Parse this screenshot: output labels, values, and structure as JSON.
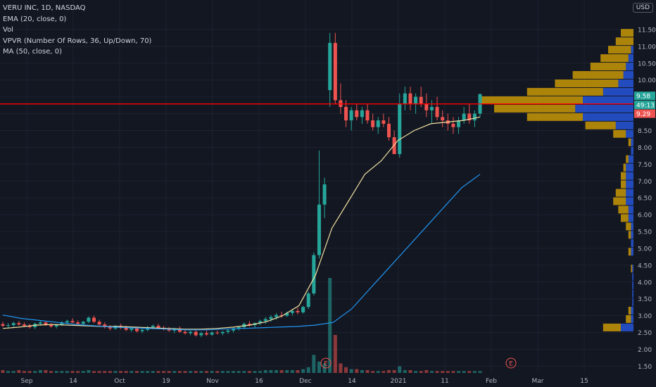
{
  "legend": {
    "title": "VERU INC, 1D, NASDAQ",
    "ema": "EMA (20, close, 0)",
    "vol": "Vol",
    "vpvr": "VPVR (Number Of Rows, 36, Up/Down, 70)",
    "ma": "MA (50, close, 0)"
  },
  "currency": "USD",
  "price_axis": {
    "ticks": [
      "11.50",
      "11.00",
      "10.50",
      "10.00",
      "9.50",
      "9.00",
      "8.50",
      "8.00",
      "7.50",
      "7.00",
      "6.50",
      "6.00",
      "5.50",
      "5.00",
      "4.50",
      "4.00",
      "3.50",
      "3.00",
      "2.50",
      "2.00",
      "1.50"
    ],
    "label_last": "9.58",
    "label_countdown": "49:13",
    "label_red": "9.29"
  },
  "time_axis": [
    "Sep",
    "14",
    "Oct",
    "19",
    "Nov",
    "16",
    "Dec",
    "14",
    "2021",
    "11",
    "Feb",
    "Mar",
    "15"
  ],
  "earnings_markers": [
    "E",
    "E"
  ],
  "colors": {
    "background": "#131722",
    "up": "#26a69a",
    "down": "#ef5350",
    "ema": "#f0e0a0",
    "ma": "#2196f3",
    "hline": "#ff0000",
    "vpvr_up": "#2962ff",
    "vpvr_down": "#f0b400"
  },
  "chart_data": {
    "type": "candlestick",
    "series": [
      {
        "name": "price",
        "ohlc": [
          [
            2.75,
            2.82,
            2.66,
            2.7
          ],
          [
            2.7,
            2.78,
            2.62,
            2.72
          ],
          [
            2.72,
            2.82,
            2.66,
            2.78
          ],
          [
            2.78,
            2.84,
            2.7,
            2.74
          ],
          [
            2.74,
            2.8,
            2.66,
            2.7
          ],
          [
            2.7,
            2.76,
            2.62,
            2.66
          ],
          [
            2.66,
            2.8,
            2.6,
            2.76
          ],
          [
            2.76,
            2.86,
            2.7,
            2.8
          ],
          [
            2.8,
            2.84,
            2.7,
            2.72
          ],
          [
            2.72,
            2.78,
            2.64,
            2.68
          ],
          [
            2.68,
            2.76,
            2.62,
            2.74
          ],
          [
            2.74,
            2.84,
            2.7,
            2.8
          ],
          [
            2.8,
            2.88,
            2.74,
            2.84
          ],
          [
            2.84,
            2.92,
            2.78,
            2.8
          ],
          [
            2.8,
            2.86,
            2.72,
            2.76
          ],
          [
            2.76,
            2.84,
            2.7,
            2.82
          ],
          [
            2.82,
            2.98,
            2.78,
            2.94
          ],
          [
            2.94,
            3.0,
            2.78,
            2.82
          ],
          [
            2.82,
            2.88,
            2.7,
            2.74
          ],
          [
            2.74,
            2.8,
            2.62,
            2.66
          ],
          [
            2.66,
            2.72,
            2.56,
            2.62
          ],
          [
            2.62,
            2.72,
            2.58,
            2.7
          ],
          [
            2.7,
            2.76,
            2.6,
            2.64
          ],
          [
            2.64,
            2.7,
            2.54,
            2.58
          ],
          [
            2.58,
            2.66,
            2.52,
            2.62
          ],
          [
            2.62,
            2.66,
            2.5,
            2.54
          ],
          [
            2.54,
            2.62,
            2.48,
            2.58
          ],
          [
            2.58,
            2.7,
            2.54,
            2.66
          ],
          [
            2.66,
            2.74,
            2.6,
            2.7
          ],
          [
            2.7,
            2.76,
            2.62,
            2.64
          ],
          [
            2.64,
            2.7,
            2.56,
            2.6
          ],
          [
            2.6,
            2.66,
            2.52,
            2.56
          ],
          [
            2.56,
            2.64,
            2.48,
            2.62
          ],
          [
            2.62,
            2.68,
            2.5,
            2.52
          ],
          [
            2.52,
            2.6,
            2.44,
            2.48
          ],
          [
            2.48,
            2.56,
            2.42,
            2.52
          ],
          [
            2.52,
            2.58,
            2.38,
            2.42
          ],
          [
            2.42,
            2.52,
            2.36,
            2.48
          ],
          [
            2.48,
            2.56,
            2.4,
            2.44
          ],
          [
            2.44,
            2.54,
            2.4,
            2.5
          ],
          [
            2.5,
            2.56,
            2.44,
            2.48
          ],
          [
            2.48,
            2.54,
            2.42,
            2.52
          ],
          [
            2.52,
            2.6,
            2.46,
            2.56
          ],
          [
            2.56,
            2.66,
            2.5,
            2.62
          ],
          [
            2.62,
            2.7,
            2.56,
            2.66
          ],
          [
            2.66,
            2.8,
            2.6,
            2.76
          ],
          [
            2.76,
            2.84,
            2.68,
            2.72
          ],
          [
            2.72,
            2.8,
            2.64,
            2.78
          ],
          [
            2.78,
            2.88,
            2.72,
            2.84
          ],
          [
            2.84,
            2.96,
            2.76,
            2.9
          ],
          [
            2.9,
            3.02,
            2.82,
            2.96
          ],
          [
            2.96,
            3.08,
            2.88,
            3.02
          ],
          [
            3.02,
            3.12,
            2.94,
            3.0
          ],
          [
            3.0,
            3.12,
            2.96,
            3.08
          ],
          [
            3.08,
            3.2,
            3.0,
            3.14
          ],
          [
            3.14,
            3.24,
            3.04,
            3.1
          ],
          [
            3.1,
            3.3,
            3.06,
            3.26
          ],
          [
            3.26,
            3.72,
            3.2,
            3.66
          ],
          [
            3.66,
            4.88,
            3.6,
            4.8
          ],
          [
            4.8,
            7.9,
            4.7,
            6.3
          ],
          [
            6.3,
            7.1,
            5.9,
            6.9
          ],
          [
            9.7,
            11.4,
            9.2,
            11.1
          ],
          [
            11.1,
            11.4,
            9.3,
            9.4
          ],
          [
            9.4,
            9.9,
            9.0,
            9.2
          ],
          [
            9.2,
            9.4,
            8.6,
            8.8
          ],
          [
            8.8,
            9.2,
            8.5,
            9.1
          ],
          [
            9.1,
            9.3,
            8.8,
            8.9
          ],
          [
            8.9,
            9.2,
            8.7,
            9.1
          ],
          [
            9.1,
            9.3,
            8.7,
            8.8
          ],
          [
            8.8,
            9.0,
            8.5,
            8.6
          ],
          [
            8.6,
            8.9,
            8.4,
            8.8
          ],
          [
            8.8,
            9.0,
            8.6,
            8.7
          ],
          [
            8.7,
            8.9,
            8.2,
            8.3
          ],
          [
            8.3,
            8.5,
            7.8,
            7.8
          ],
          [
            7.8,
            9.6,
            7.7,
            9.3
          ],
          [
            9.3,
            9.8,
            9.1,
            9.6
          ],
          [
            9.6,
            9.8,
            9.1,
            9.3
          ],
          [
            9.3,
            9.6,
            9.0,
            9.5
          ],
          [
            9.5,
            9.8,
            9.2,
            9.3
          ],
          [
            9.3,
            9.6,
            8.9,
            9.1
          ],
          [
            9.1,
            9.4,
            8.7,
            9.2
          ],
          [
            9.2,
            9.5,
            8.8,
            8.9
          ],
          [
            8.9,
            9.1,
            8.6,
            8.8
          ],
          [
            8.8,
            9.0,
            8.5,
            8.7
          ],
          [
            8.7,
            8.9,
            8.4,
            8.6
          ],
          [
            8.6,
            8.9,
            8.4,
            8.8
          ],
          [
            8.8,
            9.2,
            8.7,
            9.0
          ],
          [
            9.0,
            9.3,
            8.7,
            8.8
          ],
          [
            8.8,
            9.1,
            8.6,
            9.0
          ],
          [
            9.0,
            9.6,
            8.9,
            9.58
          ]
        ]
      },
      {
        "name": "EMA (20, close, 0)",
        "y": [
          2.62,
          2.66,
          2.72,
          2.74,
          2.72,
          2.7,
          2.68,
          2.68,
          2.66,
          2.64,
          2.62,
          2.6,
          2.6,
          2.62,
          2.66,
          2.72,
          2.82,
          3.0,
          3.3,
          4.2,
          5.6,
          6.4,
          7.2,
          7.6,
          8.2,
          8.5,
          8.7,
          8.75,
          8.8,
          8.9
        ]
      },
      {
        "name": "MA (50, close, 0)",
        "y": [
          3.02,
          2.92,
          2.86,
          2.8,
          2.74,
          2.7,
          2.66,
          2.64,
          2.62,
          2.6,
          2.58,
          2.58,
          2.6,
          2.62,
          2.64,
          2.66,
          2.68,
          2.72,
          2.8,
          3.2,
          3.8,
          4.4,
          5.0,
          5.6,
          6.2,
          6.8,
          7.2
        ]
      }
    ],
    "volume": [
      0.03,
      0.02,
      0.02,
      0.03,
      0.02,
      0.02,
      0.02,
      0.03,
      0.03,
      0.02,
      0.02,
      0.02,
      0.02,
      0.02,
      0.02,
      0.02,
      0.03,
      0.02,
      0.02,
      0.02,
      0.02,
      0.02,
      0.02,
      0.02,
      0.02,
      0.02,
      0.02,
      0.02,
      0.02,
      0.02,
      0.02,
      0.02,
      0.02,
      0.02,
      0.02,
      0.02,
      0.02,
      0.02,
      0.02,
      0.02,
      0.02,
      0.02,
      0.02,
      0.02,
      0.02,
      0.02,
      0.02,
      0.02,
      0.02,
      0.03,
      0.03,
      0.03,
      0.03,
      0.03,
      0.03,
      0.03,
      0.04,
      0.06,
      0.19,
      0.12,
      0.1,
      1.0,
      0.4,
      0.1,
      0.06,
      0.04,
      0.04,
      0.03,
      0.03,
      0.02,
      0.02,
      0.02,
      0.03,
      0.03,
      0.07,
      0.03,
      0.03,
      0.02,
      0.02,
      0.03,
      0.02,
      0.02,
      0.02,
      0.02,
      0.02,
      0.02,
      0.02,
      0.02,
      0.02,
      0.02
    ],
    "vpvr": [
      {
        "price": 11.4,
        "up": 0.0,
        "down": 0.1
      },
      {
        "price": 11.15,
        "up": 0.0,
        "down": 0.14
      },
      {
        "price": 10.9,
        "up": 0.02,
        "down": 0.18
      },
      {
        "price": 10.65,
        "up": 0.04,
        "down": 0.22
      },
      {
        "price": 10.4,
        "up": 0.06,
        "down": 0.28
      },
      {
        "price": 10.15,
        "up": 0.08,
        "down": 0.4
      },
      {
        "price": 9.9,
        "up": 0.12,
        "down": 0.5
      },
      {
        "price": 9.65,
        "up": 0.24,
        "down": 0.6
      },
      {
        "price": 9.4,
        "up": 0.4,
        "down": 0.82
      },
      {
        "price": 9.15,
        "up": 0.46,
        "down": 0.64
      },
      {
        "price": 8.9,
        "up": 0.4,
        "down": 0.44
      },
      {
        "price": 8.65,
        "up": 0.14,
        "down": 0.24
      },
      {
        "price": 8.4,
        "up": 0.06,
        "down": 0.1
      },
      {
        "price": 8.15,
        "up": 0.02,
        "down": 0.02
      },
      {
        "price": 7.9,
        "up": 0.02,
        "down": 0.0
      },
      {
        "price": 7.65,
        "up": 0.04,
        "down": 0.02
      },
      {
        "price": 7.4,
        "up": 0.06,
        "down": 0.02
      },
      {
        "price": 7.15,
        "up": 0.06,
        "down": 0.04
      },
      {
        "price": 6.9,
        "up": 0.06,
        "down": 0.04
      },
      {
        "price": 6.65,
        "up": 0.06,
        "down": 0.08
      },
      {
        "price": 6.4,
        "up": 0.06,
        "down": 0.1
      },
      {
        "price": 6.15,
        "up": 0.04,
        "down": 0.08
      },
      {
        "price": 5.9,
        "up": 0.04,
        "down": 0.06
      },
      {
        "price": 5.65,
        "up": 0.02,
        "down": 0.04
      },
      {
        "price": 5.4,
        "up": 0.02,
        "down": 0.02
      },
      {
        "price": 5.15,
        "up": 0.02,
        "down": 0.0
      },
      {
        "price": 4.9,
        "up": 0.02,
        "down": 0.02
      },
      {
        "price": 4.65,
        "up": 0.0,
        "down": 0.0
      },
      {
        "price": 4.4,
        "up": 0.01,
        "down": 0.01
      },
      {
        "price": 4.15,
        "up": 0.01,
        "down": 0.0
      },
      {
        "price": 3.9,
        "up": 0.01,
        "down": 0.0
      },
      {
        "price": 3.65,
        "up": 0.01,
        "down": 0.0
      },
      {
        "price": 3.4,
        "up": 0.01,
        "down": 0.0
      },
      {
        "price": 3.15,
        "up": 0.02,
        "down": 0.02
      },
      {
        "price": 2.9,
        "up": 0.02,
        "down": 0.04
      },
      {
        "price": 2.65,
        "up": 0.1,
        "down": 0.14
      }
    ],
    "hline": 9.29,
    "ylim": [
      1.3,
      12.0
    ],
    "legend": "top-left"
  }
}
